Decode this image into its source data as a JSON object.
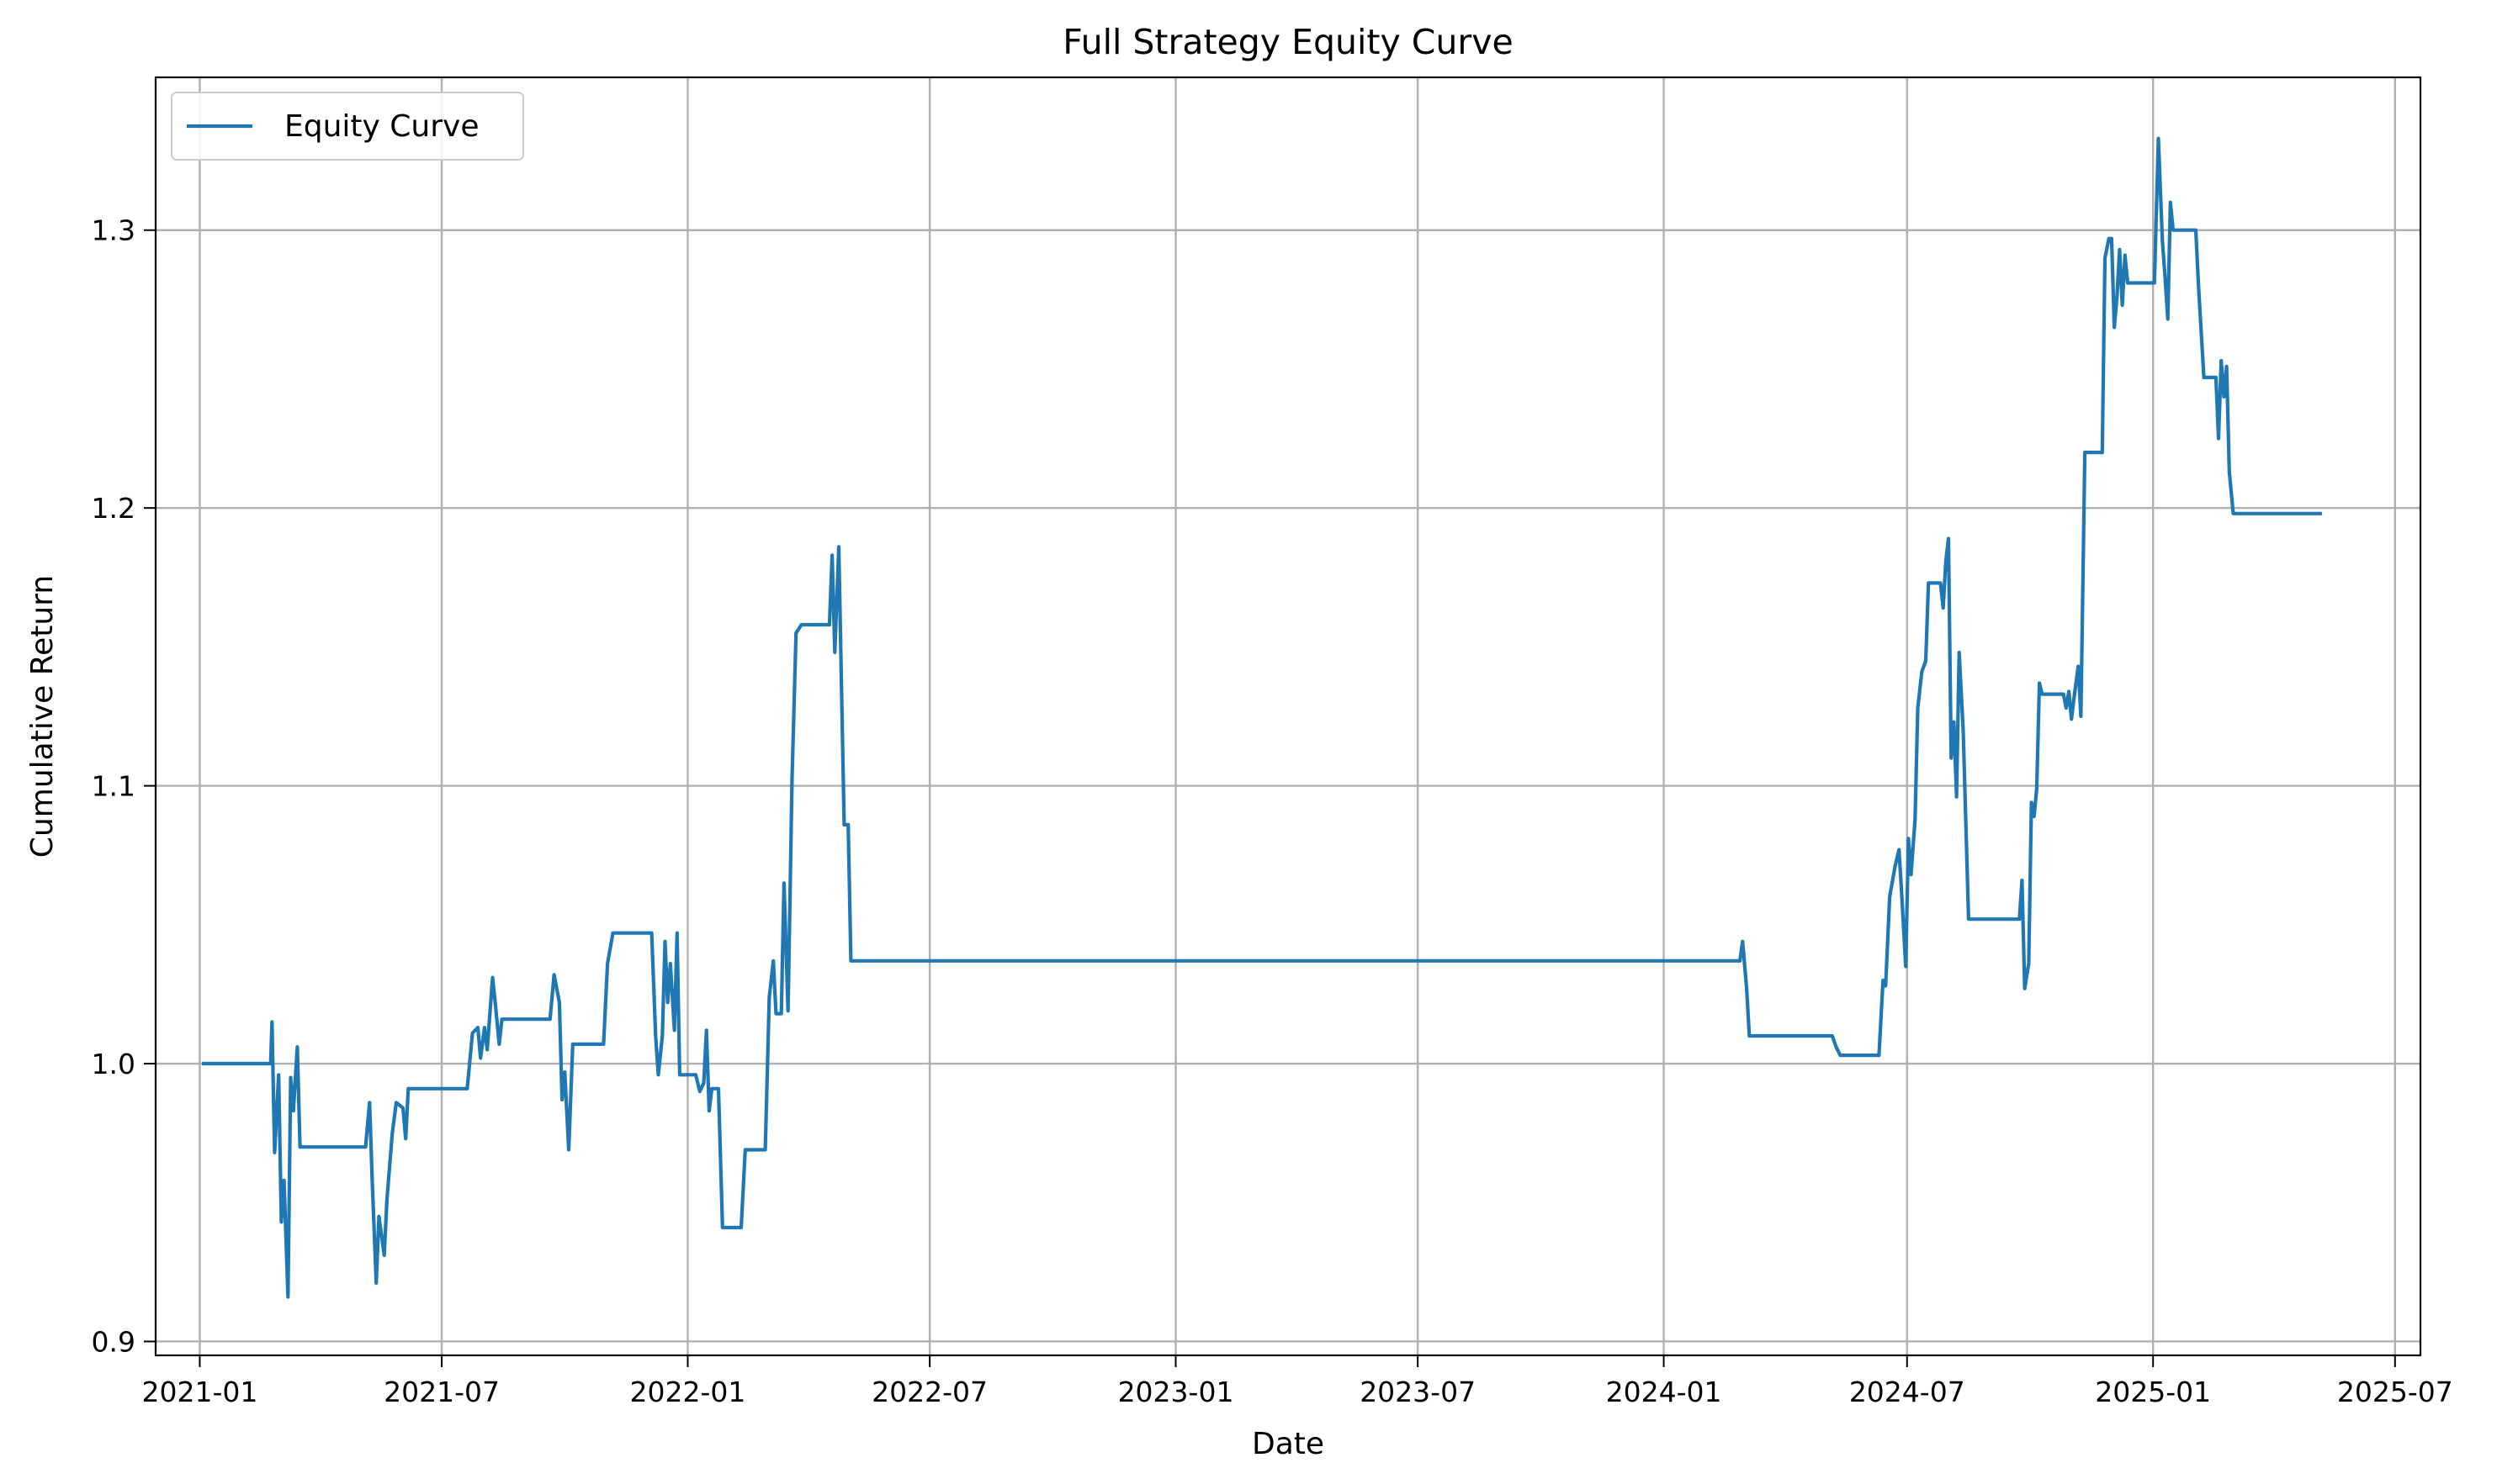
{
  "chart_data": {
    "type": "line",
    "title": "Full Strategy Equity Curve",
    "xlabel": "Date",
    "ylabel": "Cumulative Return",
    "x_axis_type": "date",
    "xlim": [
      "2020-11-29",
      "2025-07-20"
    ],
    "ylim": [
      0.895,
      1.355
    ],
    "x_ticks": [
      "2021-01-01",
      "2021-07-01",
      "2022-01-01",
      "2022-07-01",
      "2023-01-01",
      "2023-07-01",
      "2024-01-01",
      "2024-07-01",
      "2025-01-01",
      "2025-07-01"
    ],
    "x_tick_labels": [
      "2021-01",
      "2021-07",
      "2022-01",
      "2022-07",
      "2023-01",
      "2023-07",
      "2024-01",
      "2024-07",
      "2025-01",
      "2025-07"
    ],
    "y_ticks": [
      0.9,
      1.0,
      1.1,
      1.2,
      1.3
    ],
    "y_tick_labels": [
      "0.9",
      "1.0",
      "1.1",
      "1.2",
      "1.3"
    ],
    "grid": true,
    "legend_position": "upper-left",
    "series": [
      {
        "name": "Equity Curve",
        "color": "#1f77b4",
        "points": [
          [
            "2021-01-04",
            1.0
          ],
          [
            "2021-02-23",
            1.0
          ],
          [
            "2021-02-24",
            1.015
          ],
          [
            "2021-02-26",
            0.968
          ],
          [
            "2021-03-01",
            0.996
          ],
          [
            "2021-03-03",
            0.943
          ],
          [
            "2021-03-05",
            0.958
          ],
          [
            "2021-03-08",
            0.916
          ],
          [
            "2021-03-10",
            0.995
          ],
          [
            "2021-03-12",
            0.983
          ],
          [
            "2021-03-15",
            1.006
          ],
          [
            "2021-03-17",
            0.97
          ],
          [
            "2021-05-05",
            0.97
          ],
          [
            "2021-05-08",
            0.986
          ],
          [
            "2021-05-10",
            0.958
          ],
          [
            "2021-05-13",
            0.921
          ],
          [
            "2021-05-15",
            0.945
          ],
          [
            "2021-05-19",
            0.931
          ],
          [
            "2021-05-21",
            0.951
          ],
          [
            "2021-05-25",
            0.975
          ],
          [
            "2021-05-28",
            0.986
          ],
          [
            "2021-06-02",
            0.984
          ],
          [
            "2021-06-04",
            0.973
          ],
          [
            "2021-06-06",
            0.991
          ],
          [
            "2021-07-20",
            0.991
          ],
          [
            "2021-07-24",
            1.011
          ],
          [
            "2021-07-28",
            1.013
          ],
          [
            "2021-07-30",
            1.002
          ],
          [
            "2021-08-02",
            1.013
          ],
          [
            "2021-08-04",
            1.005
          ],
          [
            "2021-08-08",
            1.031
          ],
          [
            "2021-08-10",
            1.022
          ],
          [
            "2021-08-13",
            1.007
          ],
          [
            "2021-08-15",
            1.016
          ],
          [
            "2021-09-20",
            1.016
          ],
          [
            "2021-09-23",
            1.032
          ],
          [
            "2021-09-27",
            1.022
          ],
          [
            "2021-09-29",
            0.987
          ],
          [
            "2021-10-01",
            0.997
          ],
          [
            "2021-10-04",
            0.969
          ],
          [
            "2021-10-07",
            1.007
          ],
          [
            "2021-10-30",
            1.007
          ],
          [
            "2021-11-02",
            1.036
          ],
          [
            "2021-11-06",
            1.047
          ],
          [
            "2021-12-05",
            1.047
          ],
          [
            "2021-12-08",
            1.01
          ],
          [
            "2021-12-10",
            0.996
          ],
          [
            "2021-12-13",
            1.01
          ],
          [
            "2021-12-15",
            1.044
          ],
          [
            "2021-12-17",
            1.022
          ],
          [
            "2021-12-19",
            1.036
          ],
          [
            "2021-12-22",
            1.012
          ],
          [
            "2021-12-24",
            1.047
          ],
          [
            "2021-12-26",
            0.996
          ],
          [
            "2022-01-07",
            0.996
          ],
          [
            "2022-01-10",
            0.99
          ],
          [
            "2022-01-13",
            0.993
          ],
          [
            "2022-01-15",
            1.012
          ],
          [
            "2022-01-17",
            0.983
          ],
          [
            "2022-01-19",
            0.991
          ],
          [
            "2022-01-24",
            0.991
          ],
          [
            "2022-01-27",
            0.941
          ],
          [
            "2022-02-10",
            0.941
          ],
          [
            "2022-02-13",
            0.969
          ],
          [
            "2022-02-28",
            0.969
          ],
          [
            "2022-03-03",
            1.024
          ],
          [
            "2022-03-06",
            1.037
          ],
          [
            "2022-03-08",
            1.018
          ],
          [
            "2022-03-12",
            1.018
          ],
          [
            "2022-03-14",
            1.065
          ],
          [
            "2022-03-17",
            1.019
          ],
          [
            "2022-03-20",
            1.102
          ],
          [
            "2022-03-23",
            1.155
          ],
          [
            "2022-03-27",
            1.158
          ],
          [
            "2022-04-17",
            1.158
          ],
          [
            "2022-04-19",
            1.183
          ],
          [
            "2022-04-21",
            1.148
          ],
          [
            "2022-04-24",
            1.186
          ],
          [
            "2022-04-28",
            1.086
          ],
          [
            "2022-05-01",
            1.086
          ],
          [
            "2022-05-03",
            1.037
          ],
          [
            "2024-02-27",
            1.037
          ],
          [
            "2024-02-29",
            1.044
          ],
          [
            "2024-03-03",
            1.027
          ],
          [
            "2024-03-05",
            1.01
          ],
          [
            "2024-05-06",
            1.01
          ],
          [
            "2024-05-09",
            1.006
          ],
          [
            "2024-05-12",
            1.003
          ],
          [
            "2024-06-10",
            1.003
          ],
          [
            "2024-06-13",
            1.03
          ],
          [
            "2024-06-15",
            1.028
          ],
          [
            "2024-06-18",
            1.06
          ],
          [
            "2024-06-22",
            1.071
          ],
          [
            "2024-06-25",
            1.077
          ],
          [
            "2024-06-27",
            1.061
          ],
          [
            "2024-06-30",
            1.035
          ],
          [
            "2024-07-02",
            1.081
          ],
          [
            "2024-07-04",
            1.068
          ],
          [
            "2024-07-07",
            1.088
          ],
          [
            "2024-07-09",
            1.128
          ],
          [
            "2024-07-12",
            1.141
          ],
          [
            "2024-07-15",
            1.145
          ],
          [
            "2024-07-17",
            1.173
          ],
          [
            "2024-07-26",
            1.173
          ],
          [
            "2024-07-28",
            1.164
          ],
          [
            "2024-07-30",
            1.181
          ],
          [
            "2024-08-01",
            1.189
          ],
          [
            "2024-08-03",
            1.11
          ],
          [
            "2024-08-05",
            1.123
          ],
          [
            "2024-08-07",
            1.096
          ],
          [
            "2024-08-09",
            1.148
          ],
          [
            "2024-08-12",
            1.12
          ],
          [
            "2024-08-16",
            1.052
          ],
          [
            "2024-09-23",
            1.052
          ],
          [
            "2024-09-25",
            1.066
          ],
          [
            "2024-09-27",
            1.027
          ],
          [
            "2024-09-30",
            1.036
          ],
          [
            "2024-10-02",
            1.094
          ],
          [
            "2024-10-04",
            1.089
          ],
          [
            "2024-10-06",
            1.099
          ],
          [
            "2024-10-08",
            1.137
          ],
          [
            "2024-10-10",
            1.133
          ],
          [
            "2024-10-26",
            1.133
          ],
          [
            "2024-10-28",
            1.128
          ],
          [
            "2024-10-30",
            1.134
          ],
          [
            "2024-11-01",
            1.124
          ],
          [
            "2024-11-03",
            1.132
          ],
          [
            "2024-11-06",
            1.143
          ],
          [
            "2024-11-08",
            1.125
          ],
          [
            "2024-11-11",
            1.22
          ],
          [
            "2024-11-24",
            1.22
          ],
          [
            "2024-11-26",
            1.29
          ],
          [
            "2024-11-29",
            1.297
          ],
          [
            "2024-12-01",
            1.297
          ],
          [
            "2024-12-03",
            1.265
          ],
          [
            "2024-12-05",
            1.276
          ],
          [
            "2024-12-07",
            1.293
          ],
          [
            "2024-12-09",
            1.273
          ],
          [
            "2024-12-11",
            1.291
          ],
          [
            "2024-12-13",
            1.281
          ],
          [
            "2024-12-30",
            1.281
          ],
          [
            "2025-01-02",
            1.281
          ],
          [
            "2025-01-05",
            1.333
          ],
          [
            "2025-01-08",
            1.296
          ],
          [
            "2025-01-10",
            1.283
          ],
          [
            "2025-01-12",
            1.268
          ],
          [
            "2025-01-14",
            1.31
          ],
          [
            "2025-01-16",
            1.3
          ],
          [
            "2025-02-02",
            1.3
          ],
          [
            "2025-02-04",
            1.28
          ],
          [
            "2025-02-08",
            1.247
          ],
          [
            "2025-02-17",
            1.247
          ],
          [
            "2025-02-19",
            1.225
          ],
          [
            "2025-02-21",
            1.253
          ],
          [
            "2025-02-23",
            1.24
          ],
          [
            "2025-02-25",
            1.251
          ],
          [
            "2025-02-27",
            1.213
          ],
          [
            "2025-03-02",
            1.198
          ],
          [
            "2025-05-06",
            1.198
          ]
        ]
      }
    ]
  }
}
